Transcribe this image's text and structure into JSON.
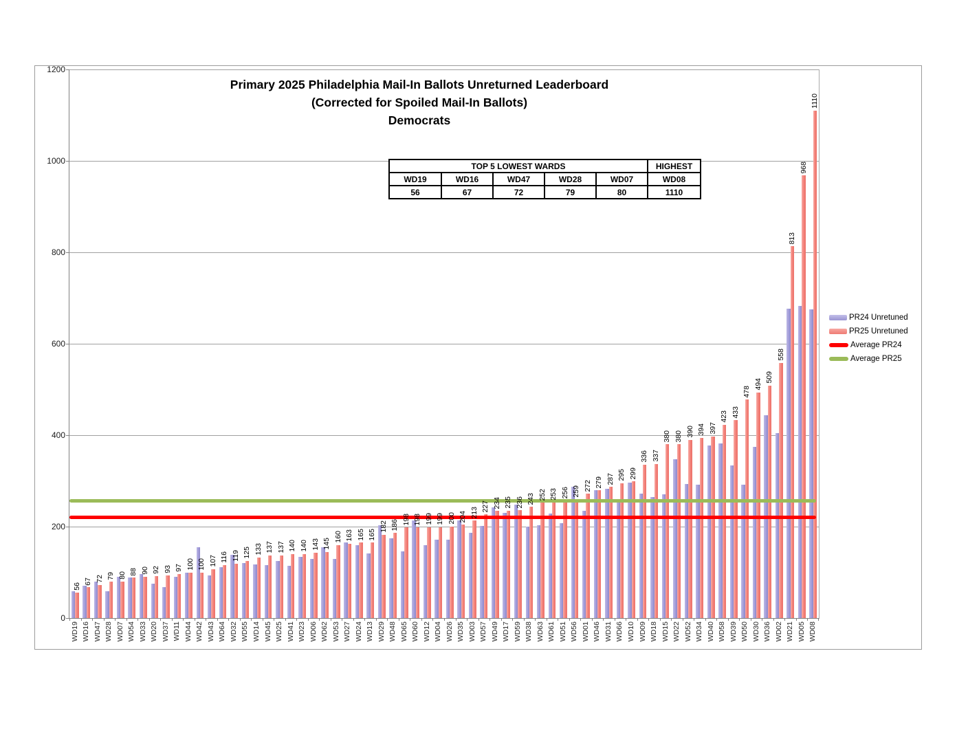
{
  "figure": {
    "title_lines": [
      "Primary 2025 Philadelphia Mail-In Ballots Unreturned Leaderboard",
      "(Corrected for Spoiled Mail-In Ballots)",
      "Democrats"
    ]
  },
  "summary_table": {
    "lowest_header": "TOP 5 LOWEST WARDS",
    "highest_header": "HIGHEST",
    "wards": [
      "WD19",
      "WD16",
      "WD47",
      "WD28",
      "WD07",
      "WD08"
    ],
    "values": [
      "56",
      "67",
      "72",
      "79",
      "80",
      "1110"
    ]
  },
  "legend": {
    "position": "right",
    "items": [
      {
        "label": "PR24 Unretuned",
        "type": "bar",
        "color": "#a39edb"
      },
      {
        "label": "PR25 Unretuned",
        "type": "bar",
        "color": "#f1837d"
      },
      {
        "label": "Average PR24",
        "type": "line",
        "color": "#fe0000"
      },
      {
        "label": "Average PR25",
        "type": "line",
        "color": "#9bbb59"
      }
    ]
  },
  "chart_data": {
    "type": "bar",
    "title": "Primary 2025 Philadelphia Mail-In Ballots Unreturned Leaderboard (Corrected for Spoiled Mail-In Ballots) Democrats",
    "xlabel": "",
    "ylabel": "",
    "ylim": [
      0,
      1200
    ],
    "ytick_step": 200,
    "grid": true,
    "legend_position": "right",
    "categories": [
      "WD19",
      "WD16",
      "WD47",
      "WD28",
      "WD07",
      "WD54",
      "WD33",
      "WD20",
      "WD37",
      "WD11",
      "WD44",
      "WD42",
      "WD43",
      "WD64",
      "WD32",
      "WD55",
      "WD14",
      "WD45",
      "WD25",
      "WD41",
      "WD23",
      "WD06",
      "WD62",
      "WD53",
      "WD27",
      "WD24",
      "WD13",
      "WD29",
      "WD48",
      "WD65",
      "WD60",
      "WD12",
      "WD04",
      "WD26",
      "WD35",
      "WD03",
      "WD57",
      "WD49",
      "WD17",
      "WD59",
      "WD38",
      "WD63",
      "WD61",
      "WD51",
      "WD56",
      "WD01",
      "WD46",
      "WD31",
      "WD66",
      "WD10",
      "WD09",
      "WD18",
      "WD15",
      "WD22",
      "WD52",
      "WD34",
      "WD40",
      "WD58",
      "WD39",
      "WD50",
      "WD30",
      "WD36",
      "WD02",
      "WD21",
      "WD05",
      "WD08"
    ],
    "series": [
      {
        "name": "PR24 Unretuned",
        "color": "#a39edb",
        "show_labels": false,
        "values_estimated": true,
        "values": [
          59,
          70,
          80,
          58,
          90,
          89,
          97,
          75,
          67,
          90,
          100,
          155,
          94,
          112,
          138,
          120,
          117,
          116,
          125,
          114,
          134,
          129,
          155,
          130,
          165,
          159,
          141,
          203,
          174,
          146,
          213,
          159,
          172,
          171,
          214,
          186,
          202,
          242,
          230,
          248,
          200,
          203,
          229,
          207,
          287,
          235,
          280,
          283,
          260,
          297,
          272,
          265,
          270,
          347,
          294,
          292,
          378,
          382,
          334,
          292,
          375,
          444,
          404,
          676,
          683,
          675
        ]
      },
      {
        "name": "PR25 Unretuned",
        "color": "#f1837d",
        "show_labels": true,
        "values_estimated": false,
        "values": [
          56,
          67,
          72,
          79,
          80,
          88,
          90,
          92,
          93,
          97,
          100,
          100,
          107,
          116,
          119,
          125,
          133,
          137,
          137,
          140,
          140,
          143,
          145,
          160,
          163,
          165,
          165,
          182,
          186,
          198,
          198,
          199,
          199,
          200,
          204,
          213,
          227,
          234,
          235,
          236,
          243,
          252,
          253,
          256,
          259,
          272,
          279,
          287,
          295,
          299,
          336,
          337,
          380,
          380,
          390,
          394,
          397,
          423,
          433,
          478,
          494,
          509,
          558,
          813,
          968,
          1110
        ]
      }
    ],
    "reference_lines": [
      {
        "name": "Average PR24",
        "value": 220,
        "color": "#fe0000"
      },
      {
        "name": "Average PR25",
        "value": 256,
        "color": "#9bbb59"
      }
    ]
  }
}
